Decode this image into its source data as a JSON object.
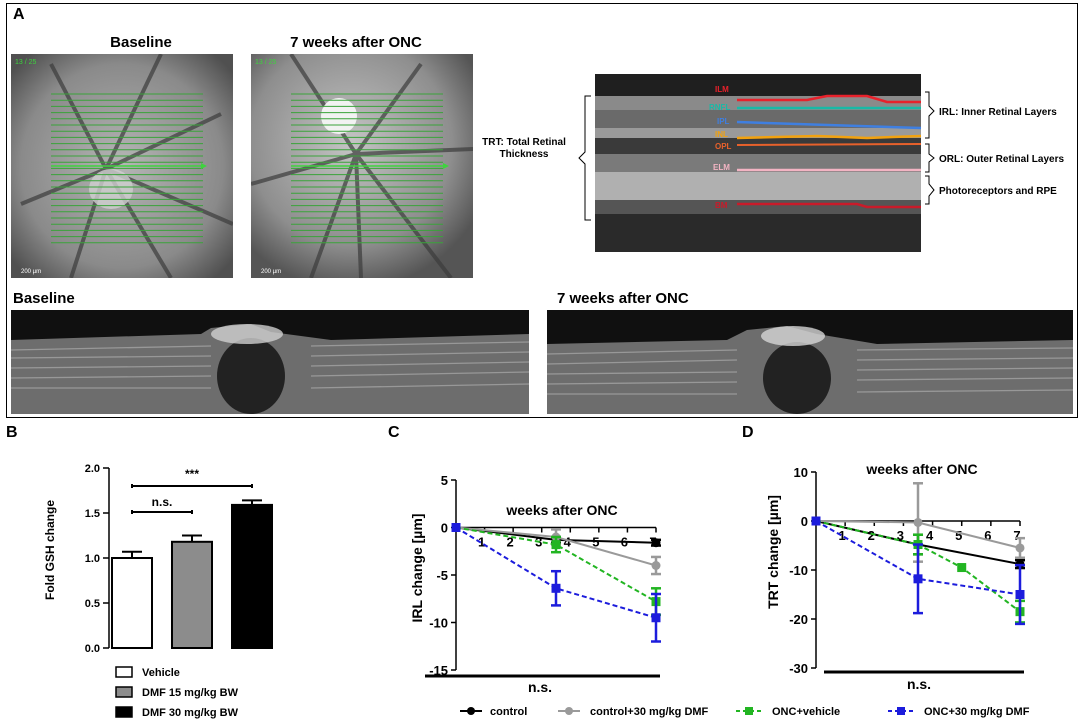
{
  "panel_a": {
    "label": "A",
    "fundus_baseline": {
      "title": "Baseline",
      "counter": "13 / 25",
      "scale": "200 µm"
    },
    "fundus_onc": {
      "title": "7 weeks after ONC",
      "counter": "13 / 25",
      "scale": "200 µm"
    },
    "oct_layers": {
      "trt_label_1": "TRT: Total Retinal",
      "trt_label_2": "Thickness",
      "layers": [
        {
          "name": "ILM",
          "color": "#e8212b"
        },
        {
          "name": "RNFL",
          "color": "#19b9a6"
        },
        {
          "name": "IPL",
          "color": "#3f7fe0"
        },
        {
          "name": "INL",
          "color": "#f2a20f"
        },
        {
          "name": "OPL",
          "color": "#e8612b"
        },
        {
          "name": "ELM",
          "color": "#f3b4c3"
        },
        {
          "name": "BM",
          "color": "#c91b2a"
        }
      ],
      "irl_label": "IRL: Inner Retinal Layers",
      "orl_label": "ORL: Outer Retinal Layers",
      "pr_label": "Photoreceptors and RPE"
    },
    "scan_baseline_title": "Baseline",
    "scan_onc_title": "7 weeks after ONC"
  },
  "panel_labels": {
    "b": "B",
    "c": "C",
    "d": "D"
  },
  "chart_data": [
    {
      "type": "bar",
      "panel": "B",
      "categories": [
        "Vehicle",
        "DMF 15 mg/kg BW",
        "DMF 30 mg/kg BW"
      ],
      "values": [
        1.0,
        1.18,
        1.59
      ],
      "errors": [
        0.07,
        0.07,
        0.05
      ],
      "colors": [
        "#ffffff",
        "#8c8c8c",
        "#000000"
      ],
      "ylabel": "Fold GSH change",
      "ylim": [
        0.0,
        2.0
      ],
      "yticks": [
        "0.0",
        "0.5",
        "1.0",
        "1.5",
        "2.0"
      ],
      "annotations": {
        "ns": "n.s.",
        "sig": "***"
      },
      "legend": [
        "Vehicle",
        "DMF 15 mg/kg BW",
        "DMF 30 mg/kg BW"
      ]
    },
    {
      "type": "line",
      "panel": "C",
      "title": "weeks after ONC",
      "ylabel": "IRL change [µm]",
      "ylim": [
        -15,
        5
      ],
      "yticks": [
        "5",
        "0",
        "-5",
        "-10",
        "-15"
      ],
      "xticks": [
        "1",
        "2",
        "3",
        "4",
        "5",
        "6",
        "7"
      ],
      "xlim": [
        0,
        7
      ],
      "bottom_annotation": "n.s.",
      "series": [
        {
          "name": "control",
          "x": [
            0,
            3.5,
            7
          ],
          "y": [
            0,
            -1.3,
            -1.6
          ],
          "err": [
            0,
            0.3,
            0.3
          ],
          "color": "#000000",
          "dash": false,
          "marker": "circle"
        },
        {
          "name": "control+30 mg/kg DMF",
          "x": [
            0,
            3.5,
            7
          ],
          "y": [
            0,
            -1.0,
            -4.0
          ],
          "err": [
            0,
            0.8,
            0.9
          ],
          "color": "#9a9a9a",
          "dash": false,
          "marker": "circle"
        },
        {
          "name": "ONC+vehicle",
          "x": [
            0,
            3.5,
            7
          ],
          "y": [
            0,
            -1.8,
            -7.8
          ],
          "err": [
            0,
            0.8,
            1.4
          ],
          "color": "#22b522",
          "dash": true,
          "marker": "square"
        },
        {
          "name": "ONC+30 mg/kg DMF",
          "x": [
            0,
            3.5,
            7
          ],
          "y": [
            0,
            -6.4,
            -9.5
          ],
          "err": [
            0,
            1.8,
            2.5
          ],
          "color": "#1c1cdc",
          "dash": true,
          "marker": "square"
        }
      ]
    },
    {
      "type": "line",
      "panel": "D",
      "title": "weeks after ONC",
      "ylabel": "TRT change [µm]",
      "ylim": [
        -30,
        10
      ],
      "yticks": [
        "10",
        "0",
        "-10",
        "-20",
        "-30"
      ],
      "xticks": [
        "1",
        "2",
        "3",
        "4",
        "5",
        "6",
        "7"
      ],
      "xlim": [
        0,
        7
      ],
      "bottom_annotation": "n.s.",
      "series": [
        {
          "name": "control",
          "x": [
            0,
            3.5,
            7
          ],
          "y": [
            0,
            -4.8,
            -8.8
          ],
          "err": [
            0,
            2.0,
            0.8
          ],
          "color": "#000000",
          "dash": false,
          "marker": "circle"
        },
        {
          "name": "control+30 mg/kg DMF",
          "x": [
            0,
            3.5,
            7
          ],
          "y": [
            0,
            -0.3,
            -5.5
          ],
          "err": [
            0,
            8.0,
            2.0
          ],
          "color": "#9a9a9a",
          "dash": false,
          "marker": "circle"
        },
        {
          "name": "ONC+vehicle",
          "x": [
            0,
            3.5,
            5,
            7
          ],
          "y": [
            0,
            -4.8,
            -9.5,
            -18.5
          ],
          "err": [
            0,
            2.0,
            0,
            2.2
          ],
          "color": "#22b522",
          "dash": true,
          "marker": "square"
        },
        {
          "name": "ONC+30 mg/kg DMF",
          "x": [
            0,
            3.5,
            7
          ],
          "y": [
            0,
            -11.8,
            -15.0
          ],
          "err": [
            0,
            7.0,
            6.0
          ],
          "color": "#1c1cdc",
          "dash": true,
          "marker": "square"
        }
      ]
    }
  ],
  "legend_cd": [
    "control",
    "control+30 mg/kg DMF",
    "ONC+vehicle",
    "ONC+30 mg/kg DMF"
  ]
}
